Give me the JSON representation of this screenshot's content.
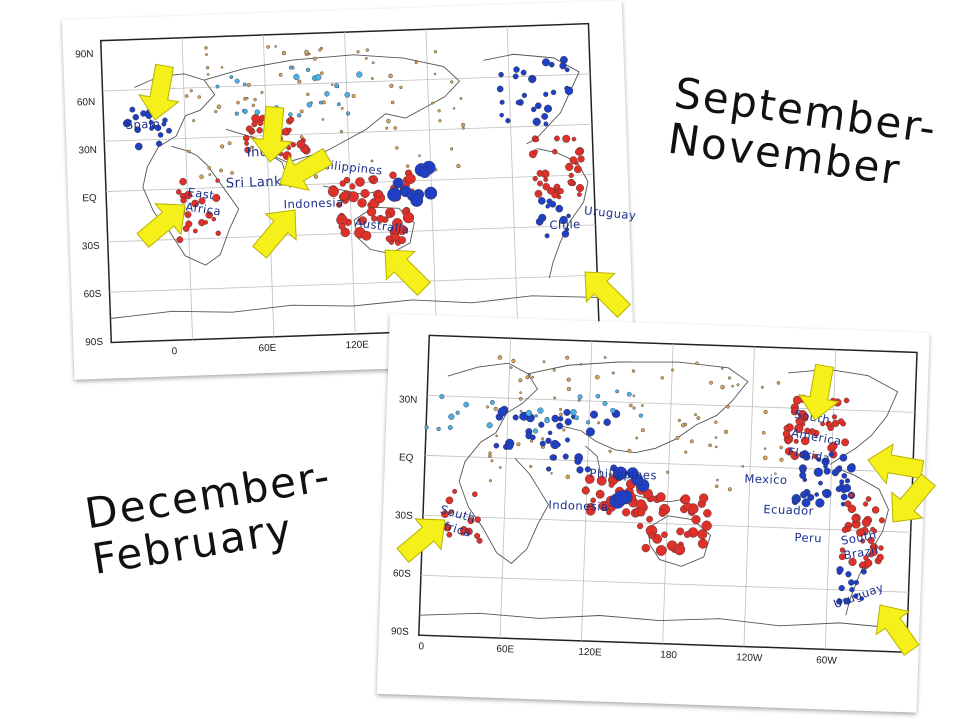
{
  "slide": {
    "son_title": "September-\nNovember",
    "djf_title": "December-\nFebruary"
  },
  "son_map": {
    "lat_ticks": [
      "90N",
      "60N",
      "30N",
      "EQ",
      "30S",
      "60S",
      "90S"
    ],
    "lon_ticks": [
      "0",
      "60E",
      "120E"
    ],
    "labels": {
      "spain": "Spain",
      "india": "India",
      "sri_lanka": "Sri Lanka",
      "philippines": "Philippines",
      "east_africa": "East\nAfrica",
      "indonesia": "Indonesia",
      "australia": "Australia",
      "chile": "Chile",
      "uruguay": "Uruguay"
    }
  },
  "djf_map": {
    "lat_ticks": [
      "30N",
      "EQ",
      "30S",
      "60S",
      "90S"
    ],
    "lon_ticks": [
      "0",
      "60E",
      "120E",
      "180",
      "120W",
      "60W"
    ],
    "labels": {
      "south_america_florida": "South\nAmerica\nFlorida",
      "mexico": "Mexico",
      "philippines": "Philippines",
      "indonesia": "Indonesia",
      "ecuador": "Ecuador",
      "peru": "Peru",
      "south_brazil": "South\nBrazil",
      "uruguay": "Uruguay",
      "south_africa": "South\nAfrica"
    }
  },
  "colors": {
    "positive_dot": "#e0302a",
    "negative_dot": "#1f3fc4",
    "light_blue_dot": "#4ab0e8",
    "tan_dot": "#d9a35a",
    "arrow": "#f5f01a",
    "label_text": "#1a2e8a"
  }
}
